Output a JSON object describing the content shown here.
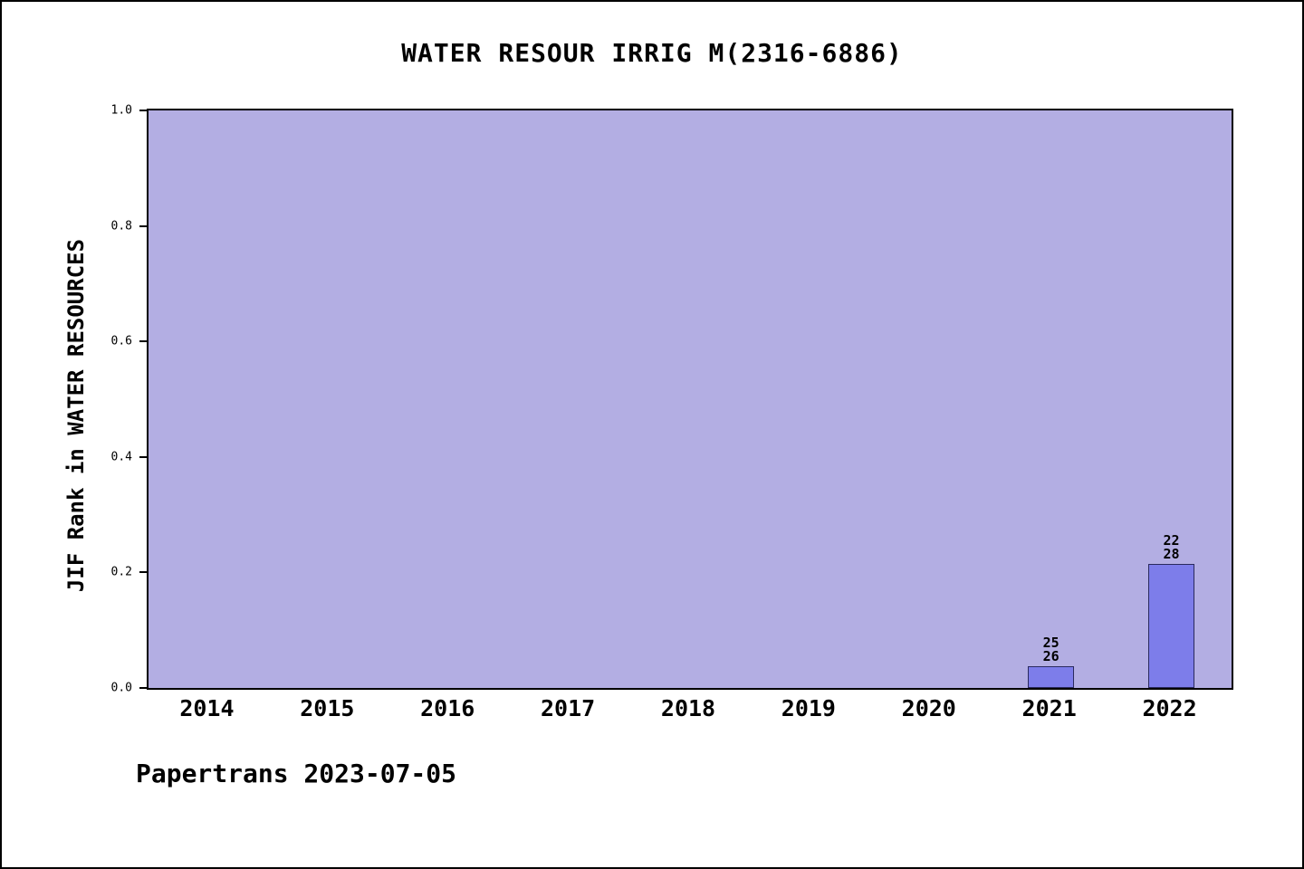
{
  "footer": "Papertrans 2023-07-05",
  "chart_data": {
    "type": "bar",
    "title": "WATER RESOUR IRRIG M(2316-6886)",
    "xlabel": "",
    "ylabel": "JIF Rank in WATER RESOURCES",
    "ylim": [
      0,
      1
    ],
    "yticks": [
      "0.0",
      "0.2",
      "0.4",
      "0.6",
      "0.8",
      "1.0"
    ],
    "categories": [
      "2014",
      "2015",
      "2016",
      "2017",
      "2018",
      "2019",
      "2020",
      "2021",
      "2022"
    ],
    "series": [
      {
        "name": "JIF Rank in WATER RESOURCES",
        "values": [
          null,
          null,
          null,
          null,
          null,
          null,
          null,
          0.038,
          0.214
        ]
      }
    ],
    "bar_labels": [
      null,
      null,
      null,
      null,
      null,
      null,
      null,
      "25/26",
      "22/28"
    ],
    "legend": "none",
    "grid": false,
    "colors": {
      "plot_background": "#b3aee3",
      "bar_fill": "#7d7dea",
      "bar_edge": "#2a2a5e",
      "text": "#000000"
    }
  }
}
